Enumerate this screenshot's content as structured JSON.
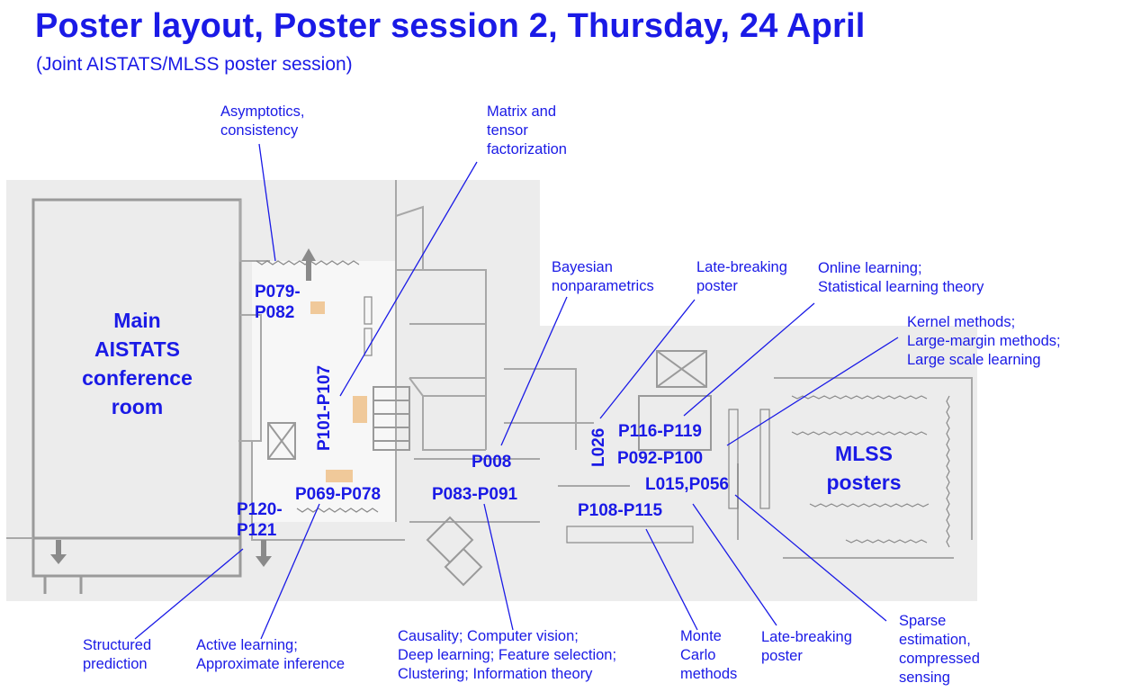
{
  "title": "Poster layout, Poster session 2, Thursday, 24 April",
  "subtitle": "(Joint AISTATS/MLSS poster session)",
  "rooms": {
    "main": "Main\nAISTATS\nconference\nroom",
    "mlss": "MLSS\nposters"
  },
  "posters": {
    "p079_p082": "P079-\nP082",
    "p101_p107": "P101-P107",
    "p069_p078": "P069-P078",
    "p120_p121": "P120-\nP121",
    "p008": "P008",
    "p083_p091": "P083-P091",
    "l026": "L026",
    "p116_p119": "P116-P119",
    "p092_p100": "P092-P100",
    "l015_p056": "L015,P056",
    "p108_p115": "P108-P115"
  },
  "topics": {
    "asymptotics": "Asymptotics,\nconsistency",
    "matrix": "Matrix and\ntensor\nfactorization",
    "bayesian": "Bayesian\nnonparametrics",
    "late_top": "Late-breaking\nposter",
    "online": "Online learning;\nStatistical learning theory",
    "kernel": "Kernel methods;\nLarge-margin methods;\nLarge scale learning",
    "structured": "Structured\nprediction",
    "active": "Active learning;\nApproximate inference",
    "causality": "Causality; Computer vision;\nDeep learning; Feature selection;\nClustering; Information theory",
    "monte_carlo": "Monte\nCarlo\nmethods",
    "late_bottom": "Late-breaking\nposter",
    "sparse": "Sparse\nestimation,\ncompressed\nsensing"
  },
  "colors": {
    "text": "#1a1ae6",
    "floor": "#ececec",
    "walls": "#9a9a9a",
    "poster_boards": "#f0c99a",
    "leader_lines": "#1a1ae6"
  }
}
